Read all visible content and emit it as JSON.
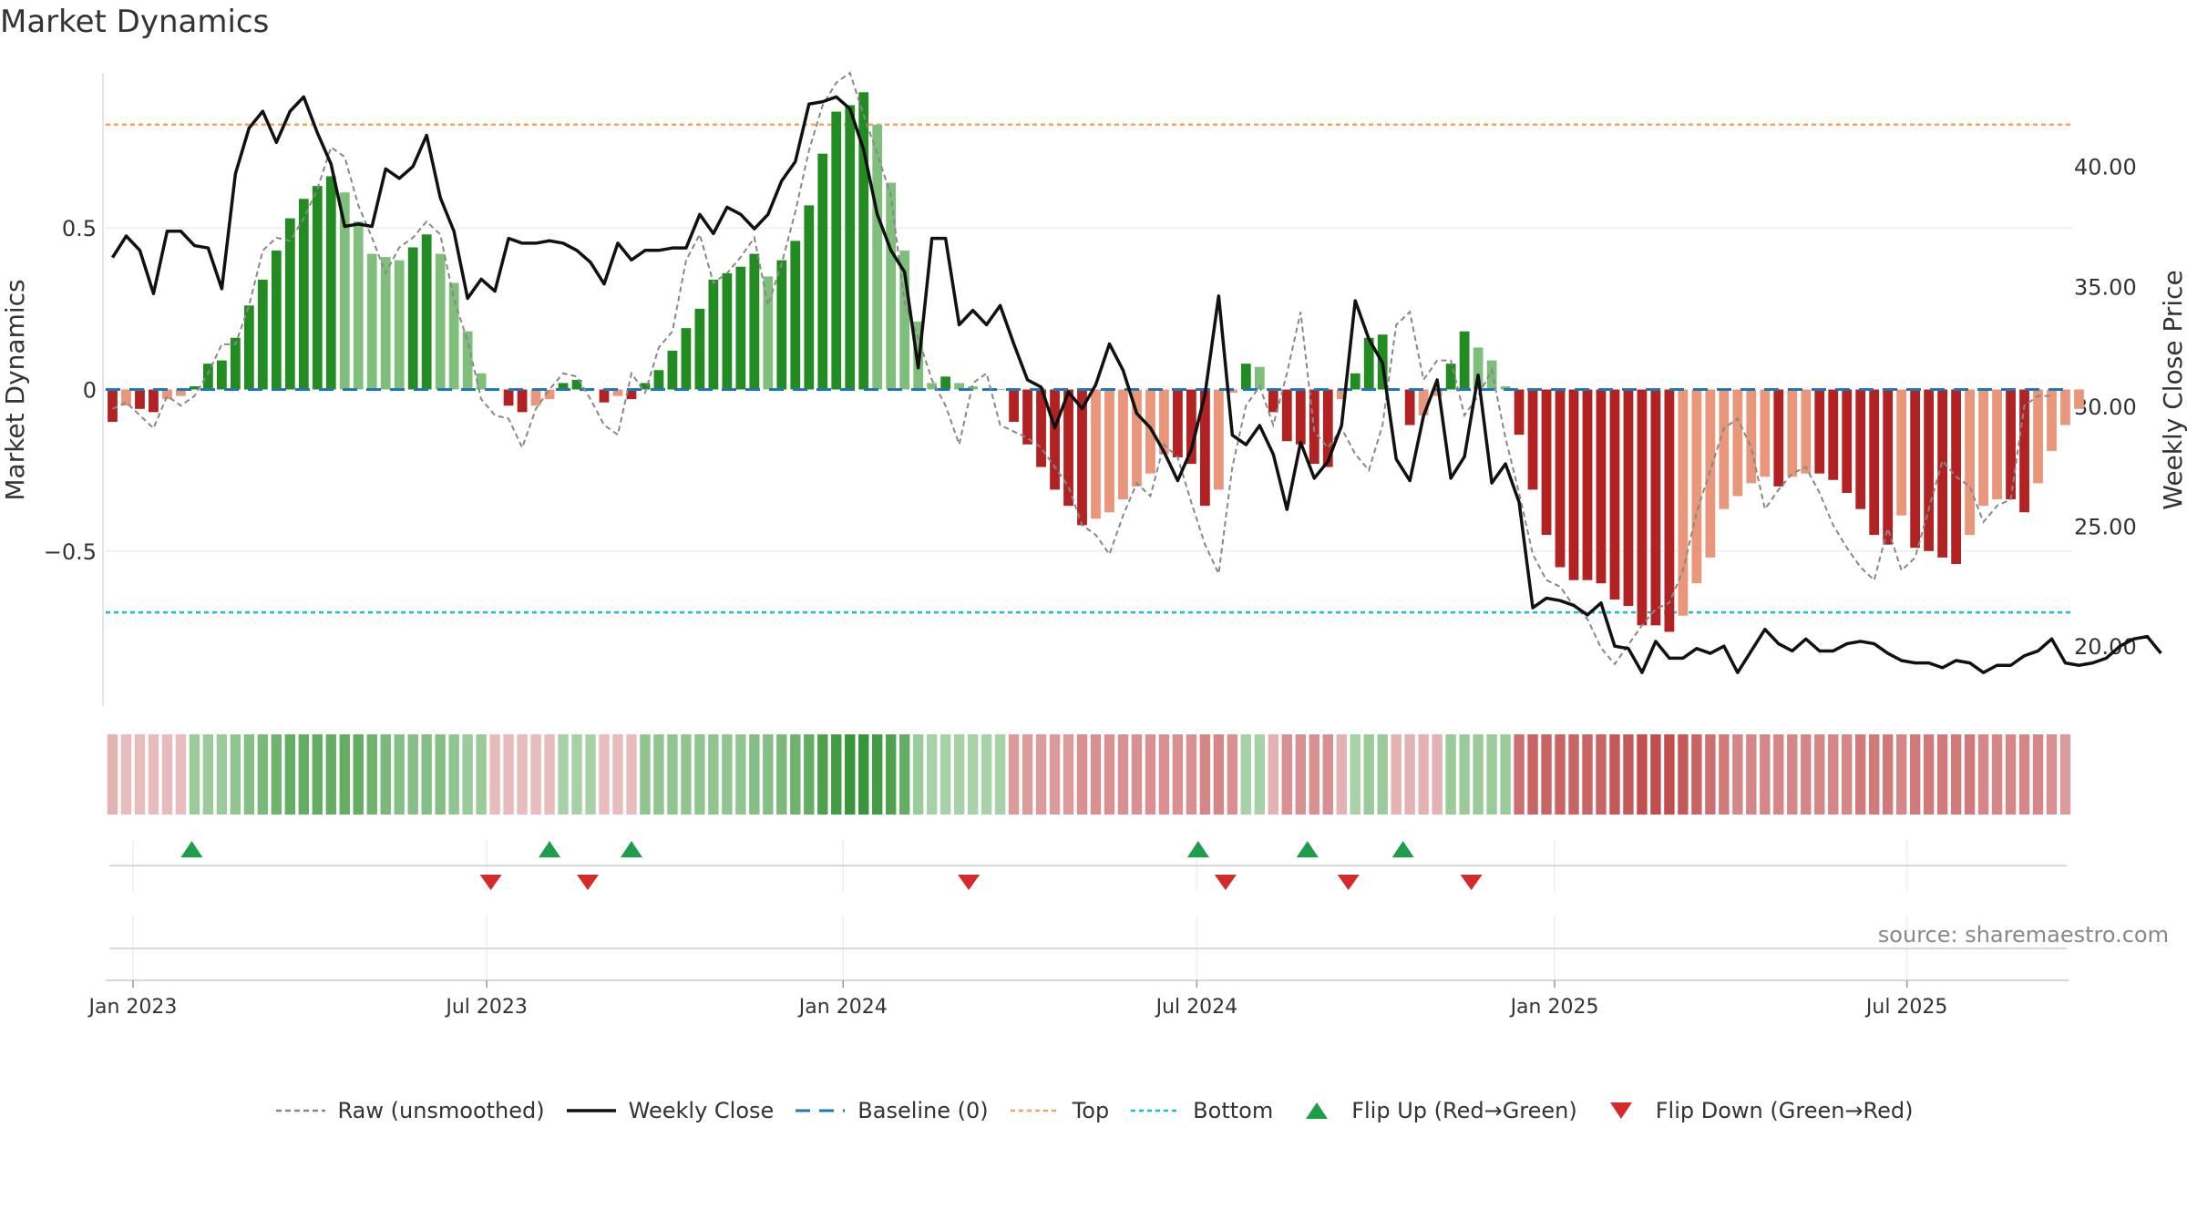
{
  "title": "Market Dynamics",
  "source": "source: sharemaestro.com",
  "chart_data": {
    "type": "bar",
    "title": "Market Dynamics",
    "ylabel_left": "Market Dynamics",
    "ylabel_right": "Weekly Close Price",
    "y_left_range": [
      -0.98,
      0.98
    ],
    "y_right_range": [
      17.5,
      43.9
    ],
    "y_left_ticks": [
      {
        "value": 0.5,
        "label": "0.5"
      },
      {
        "value": 0,
        "label": "0"
      },
      {
        "value": -0.5,
        "label": "−0.5"
      }
    ],
    "y_right_ticks": [
      {
        "value": 40,
        "label": "40.00"
      },
      {
        "value": 35,
        "label": "35.00"
      },
      {
        "value": 30,
        "label": "30.00"
      },
      {
        "value": 25,
        "label": "25.00"
      },
      {
        "value": 20,
        "label": "20.00"
      }
    ],
    "top_level": 0.82,
    "bottom_level": -0.69,
    "x_ticks": [
      "Jan 2023",
      "Jul 2023",
      "Jan 2024",
      "Jul 2024",
      "Jan 2025",
      "Jul 2025"
    ],
    "x_tick_positions": [
      2.0,
      27.9,
      54.0,
      79.9,
      106.1,
      131.9
    ],
    "weeks": 144,
    "dynamics": [
      -0.1,
      -0.05,
      -0.06,
      -0.07,
      -0.03,
      -0.02,
      0.01,
      0.08,
      0.09,
      0.16,
      0.26,
      0.34,
      0.43,
      0.53,
      0.59,
      0.63,
      0.66,
      0.61,
      0.52,
      0.42,
      0.41,
      0.4,
      0.44,
      0.48,
      0.42,
      0.33,
      0.18,
      0.05,
      0,
      -0.05,
      -0.07,
      -0.05,
      -0.03,
      0.02,
      0.03,
      0,
      -0.04,
      -0.02,
      -0.03,
      0.02,
      0.06,
      0.12,
      0.19,
      0.25,
      0.34,
      0.36,
      0.38,
      0.42,
      0.35,
      0.4,
      0.46,
      0.57,
      0.73,
      0.86,
      0.88,
      0.92,
      0.82,
      0.64,
      0.43,
      0.21,
      0.02,
      0.04,
      0.02,
      0.01,
      0,
      0,
      -0.1,
      -0.17,
      -0.24,
      -0.31,
      -0.36,
      -0.42,
      -0.4,
      -0.38,
      -0.34,
      -0.3,
      -0.26,
      -0.2,
      -0.21,
      -0.23,
      -0.36,
      -0.31,
      -0.01,
      0.08,
      0.07,
      -0.07,
      -0.16,
      -0.17,
      -0.23,
      -0.24,
      -0.03,
      0.05,
      0.16,
      0.17,
      0,
      -0.11,
      -0.08,
      -0.02,
      0.08,
      0.18,
      0.13,
      0.09,
      0.01,
      -0.14,
      -0.31,
      -0.45,
      -0.55,
      -0.59,
      -0.59,
      -0.6,
      -0.65,
      -0.67,
      -0.73,
      -0.73,
      -0.75,
      -0.7,
      -0.6,
      -0.52,
      -0.37,
      -0.33,
      -0.29,
      -0.27,
      -0.3,
      -0.27,
      -0.26,
      -0.26,
      -0.28,
      -0.32,
      -0.37,
      -0.45,
      -0.48,
      -0.39,
      -0.49,
      -0.5,
      -0.52,
      -0.54,
      -0.45,
      -0.36,
      -0.34,
      -0.34,
      -0.38,
      -0.29,
      -0.19,
      -0.11,
      -0.06
    ],
    "raw": [
      -0.06,
      -0.04,
      -0.08,
      -0.12,
      -0.02,
      -0.05,
      -0.02,
      0.05,
      0.14,
      0.14,
      0.26,
      0.43,
      0.47,
      0.46,
      0.53,
      0.62,
      0.75,
      0.72,
      0.57,
      0.47,
      0.36,
      0.44,
      0.47,
      0.52,
      0.48,
      0.28,
      0.15,
      -0.03,
      -0.08,
      -0.09,
      -0.18,
      -0.06,
      0,
      0.05,
      0.04,
      -0.03,
      -0.11,
      -0.14,
      0.05,
      -0.01,
      0.13,
      0.18,
      0.4,
      0.48,
      0.33,
      0.36,
      0.41,
      0.47,
      0.26,
      0.39,
      0.55,
      0.74,
      0.88,
      0.95,
      0.98,
      0.85,
      0.73,
      0.6,
      0.27,
      0.16,
      0.03,
      -0.05,
      -0.17,
      0.02,
      0.05,
      -0.11,
      -0.13,
      -0.15,
      -0.18,
      -0.24,
      -0.3,
      -0.42,
      -0.45,
      -0.51,
      -0.39,
      -0.29,
      -0.33,
      -0.17,
      -0.21,
      -0.35,
      -0.48,
      -0.57,
      -0.24,
      -0.05,
      0.01,
      -0.11,
      0.05,
      0.24,
      -0.13,
      -0.18,
      -0.12,
      -0.2,
      -0.25,
      -0.11,
      0.2,
      0.24,
      0.03,
      0.09,
      0.09,
      -0.08,
      -0.02,
      0.06,
      -0.15,
      -0.32,
      -0.51,
      -0.59,
      -0.61,
      -0.67,
      -0.71,
      -0.8,
      -0.85,
      -0.79,
      -0.73,
      -0.68,
      -0.66,
      -0.56,
      -0.38,
      -0.25,
      -0.12,
      -0.09,
      -0.18,
      -0.37,
      -0.31,
      -0.26,
      -0.24,
      -0.32,
      -0.42,
      -0.49,
      -0.55,
      -0.59,
      -0.43,
      -0.56,
      -0.52,
      -0.37,
      -0.22,
      -0.27,
      -0.3,
      -0.41,
      -0.36,
      -0.34,
      -0.05,
      -0.02,
      -0.02
    ],
    "weekly_close": [
      36.2,
      37.1,
      36.5,
      34.7,
      37.3,
      37.3,
      36.7,
      36.6,
      34.9,
      39.7,
      41.6,
      42.3,
      41.0,
      42.3,
      42.9,
      41.4,
      40.1,
      37.5,
      37.6,
      37.5,
      39.9,
      39.5,
      40.0,
      41.3,
      38.7,
      37.3,
      34.5,
      35.3,
      34.8,
      37.0,
      36.8,
      36.8,
      36.9,
      36.8,
      36.5,
      36.0,
      35.1,
      36.8,
      36.1,
      36.5,
      36.5,
      36.6,
      36.6,
      38.0,
      37.2,
      38.3,
      38.0,
      37.4,
      38.0,
      39.4,
      40.2,
      42.6,
      42.7,
      42.9,
      42.4,
      40.7,
      38.0,
      36.5,
      35.6,
      31.6,
      37.0,
      37.0,
      33.4,
      34.0,
      33.4,
      34.2,
      32.6,
      31.1,
      30.8,
      29.1,
      30.6,
      29.9,
      30.9,
      32.6,
      31.5,
      29.7,
      29.1,
      28.1,
      26.9,
      28.2,
      30.5,
      34.6,
      28.8,
      28.4,
      29.2,
      28.0,
      25.7,
      28.5,
      27.0,
      27.7,
      29.2,
      34.4,
      32.8,
      31.8,
      27.8,
      26.9,
      29.6,
      31.1,
      27.0,
      27.9,
      31.3,
      26.8,
      27.6,
      26.0,
      21.6,
      22.0,
      21.9,
      21.7,
      21.3,
      21.8,
      20.0,
      19.9,
      18.9,
      20.2,
      19.5,
      19.5,
      19.9,
      19.7,
      20.0,
      18.9,
      19.8,
      20.7,
      20.1,
      19.8,
      20.3,
      19.8,
      19.8,
      20.1,
      20.2,
      20.1,
      19.7,
      19.4,
      19.3,
      19.3,
      19.1,
      19.4,
      19.3,
      18.9,
      19.2,
      19.2,
      19.6,
      19.8,
      20.3,
      19.3,
      19.2,
      19.3,
      19.5,
      20.0,
      20.3,
      20.4,
      19.7
    ],
    "strength_band": [
      -0.35,
      -0.3,
      -0.3,
      -0.3,
      -0.3,
      -0.3,
      0.45,
      0.45,
      0.45,
      0.5,
      0.55,
      0.6,
      0.65,
      0.7,
      0.7,
      0.7,
      0.7,
      0.7,
      0.7,
      0.65,
      0.6,
      0.55,
      0.55,
      0.55,
      0.55,
      0.5,
      0.45,
      0.45,
      -0.3,
      -0.3,
      -0.3,
      -0.3,
      -0.3,
      0.4,
      0.4,
      0.4,
      -0.3,
      -0.3,
      -0.3,
      0.5,
      0.5,
      0.5,
      0.5,
      0.5,
      0.5,
      0.5,
      0.5,
      0.55,
      0.55,
      0.6,
      0.65,
      0.7,
      0.8,
      0.85,
      0.9,
      0.9,
      0.85,
      0.8,
      0.7,
      0.45,
      0.4,
      0.4,
      0.4,
      0.4,
      0.4,
      0.4,
      -0.45,
      -0.45,
      -0.45,
      -0.45,
      -0.45,
      -0.5,
      -0.5,
      -0.5,
      -0.5,
      -0.5,
      -0.5,
      -0.5,
      -0.5,
      -0.5,
      -0.55,
      -0.55,
      -0.5,
      0.4,
      0.4,
      -0.35,
      -0.5,
      -0.5,
      -0.5,
      -0.5,
      -0.35,
      0.4,
      0.45,
      0.45,
      -0.35,
      -0.35,
      -0.35,
      -0.35,
      0.45,
      0.45,
      0.45,
      0.45,
      0.45,
      -0.65,
      -0.7,
      -0.7,
      -0.7,
      -0.7,
      -0.7,
      -0.7,
      -0.75,
      -0.75,
      -0.8,
      -0.8,
      -0.8,
      -0.75,
      -0.7,
      -0.65,
      -0.6,
      -0.55,
      -0.55,
      -0.55,
      -0.55,
      -0.55,
      -0.55,
      -0.55,
      -0.55,
      -0.55,
      -0.6,
      -0.6,
      -0.6,
      -0.55,
      -0.6,
      -0.6,
      -0.6,
      -0.6,
      -0.6,
      -0.55,
      -0.55,
      -0.55,
      -0.55,
      -0.55,
      -0.5,
      -0.45
    ],
    "flip_up_weeks": [
      6.3,
      32.5,
      38.5,
      80.0,
      88.0,
      95.0
    ],
    "flip_down_weeks": [
      28.2,
      35.3,
      63.2,
      82.0,
      91.0,
      100.0
    ],
    "colors": {
      "pos_strong": "#228b22",
      "pos_weak": "#7fbf7b",
      "neg_strong": "#b22222",
      "neg_weak": "#e9967a",
      "weekly_close": "#111111",
      "raw": "#888888",
      "baseline": "#1f77b4",
      "top": "#f4a460",
      "bottom": "#17becf",
      "flip_up": "#1e9e4a",
      "flip_down": "#d42a2a"
    },
    "legend": [
      {
        "label": "Raw (unsmoothed)",
        "style": "dashed-gray"
      },
      {
        "label": "Weekly Close",
        "style": "solid-black"
      },
      {
        "label": "Baseline (0)",
        "style": "dashed-blue"
      },
      {
        "label": "Top",
        "style": "dotted-orange"
      },
      {
        "label": "Bottom",
        "style": "dotted-cyan"
      },
      {
        "label": "Flip Up (Red→Green)",
        "style": "triangle-up"
      },
      {
        "label": "Flip Down (Green→Red)",
        "style": "triangle-down"
      }
    ]
  }
}
